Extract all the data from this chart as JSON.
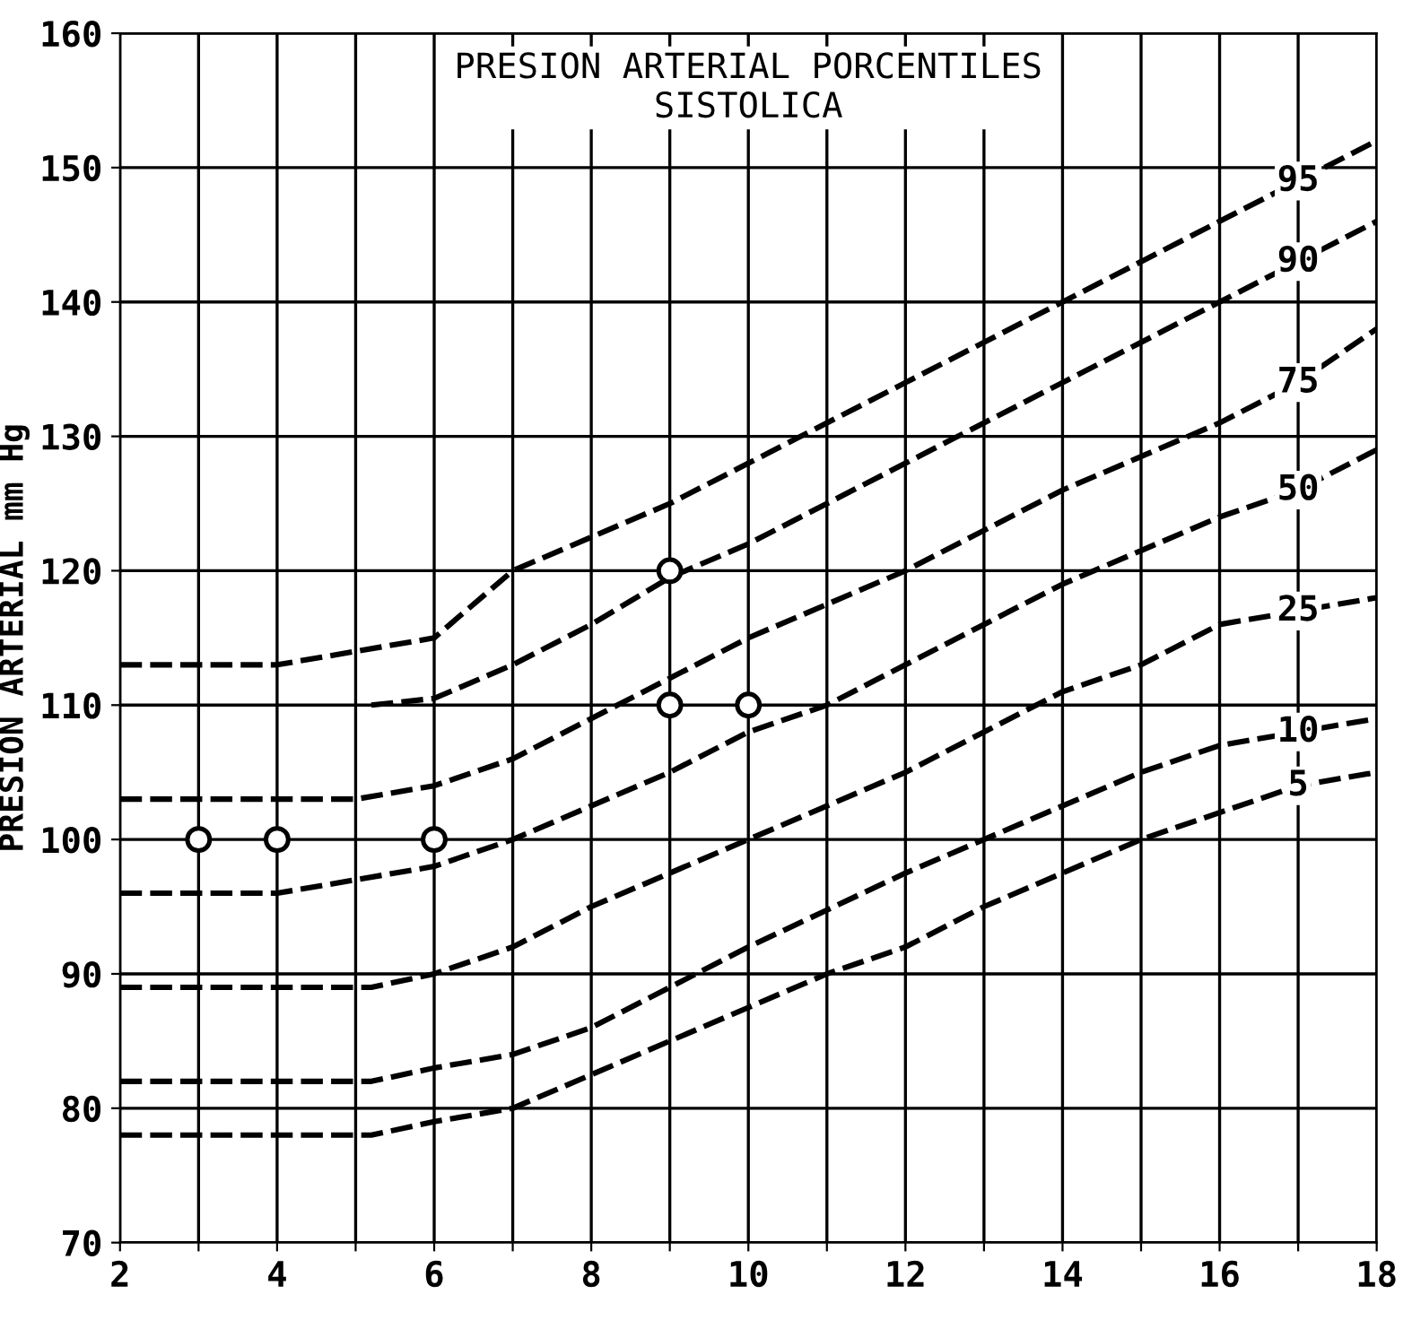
{
  "chart_data": {
    "type": "line",
    "title": "PRESION ARTERIAL PORCENTILES\nSISTOLICA",
    "ylabel": "PRESION ARTERIAL mm Hg",
    "xlim": [
      2,
      18
    ],
    "ylim": [
      70,
      160
    ],
    "xticks": [
      2,
      {
        "value": 3,
        "label": null
      },
      4,
      {
        "value": 5,
        "label": null
      },
      6,
      {
        "value": 7,
        "label": null
      },
      8,
      {
        "value": 9,
        "label": null
      },
      10,
      {
        "value": 11,
        "label": null
      },
      12,
      {
        "value": 13,
        "label": null
      },
      14,
      {
        "value": 15,
        "label": null
      },
      16,
      {
        "value": 17,
        "label": null
      },
      18
    ],
    "yticks": [
      70,
      80,
      90,
      100,
      110,
      120,
      130,
      140,
      150,
      160
    ],
    "grid": true,
    "legend": false,
    "line_style": "dashed",
    "marker": "none",
    "series": [
      {
        "name": "95",
        "color": "#000000",
        "x": [
          2,
          4,
          5,
          6,
          7,
          8,
          9,
          10,
          12,
          14,
          16,
          17,
          18
        ],
        "values": [
          113,
          113,
          114,
          115,
          120,
          122.5,
          125,
          128,
          134,
          140,
          146,
          149,
          152
        ]
      },
      {
        "name": "90",
        "color": "#000000",
        "x": [
          5.2,
          6,
          7,
          8,
          9,
          10,
          12,
          14,
          16,
          17,
          18
        ],
        "values": [
          110,
          110.5,
          113,
          116,
          119.5,
          122,
          128,
          134,
          140,
          143,
          146
        ]
      },
      {
        "name": "75",
        "color": "#000000",
        "x": [
          2,
          5,
          6,
          7,
          8,
          9,
          10,
          12,
          14,
          16,
          17,
          18
        ],
        "values": [
          103,
          103,
          104,
          106,
          109,
          112,
          115,
          120,
          126,
          131,
          134,
          138
        ]
      },
      {
        "name": "50",
        "color": "#000000",
        "x": [
          2,
          4,
          5,
          6,
          7,
          8,
          9,
          10,
          11,
          12,
          14,
          16,
          17,
          18
        ],
        "values": [
          96,
          96,
          97,
          98,
          100,
          102.5,
          105,
          108,
          110,
          113,
          119,
          124,
          126,
          129
        ]
      },
      {
        "name": "25",
        "color": "#000000",
        "x": [
          2,
          5.2,
          6,
          7,
          8,
          9,
          10,
          12,
          13,
          14,
          15,
          16,
          17,
          18
        ],
        "values": [
          89,
          89,
          90,
          92,
          95,
          97.5,
          100,
          105,
          108,
          111,
          113,
          116,
          117,
          118
        ]
      },
      {
        "name": "10",
        "color": "#000000",
        "x": [
          2,
          5.2,
          6,
          7,
          8,
          9,
          10,
          12,
          13,
          14,
          15,
          16,
          17,
          18
        ],
        "values": [
          82,
          82,
          83,
          84,
          86,
          89,
          92,
          97.5,
          100,
          102.5,
          105,
          107,
          108,
          109
        ]
      },
      {
        "name": "5",
        "color": "#000000",
        "x": [
          2,
          5.2,
          6,
          7,
          8,
          9,
          10,
          11,
          12,
          13,
          14,
          15,
          16,
          17,
          18
        ],
        "values": [
          78,
          78,
          79,
          80,
          82.5,
          85,
          87.5,
          90,
          92,
          95,
          97.5,
          100,
          102,
          104,
          105
        ]
      },
      {
        "type": "scatter",
        "color": "#000000",
        "marker": "circle",
        "x": [
          3,
          4,
          6,
          9,
          10,
          9
        ],
        "values": [
          100,
          100,
          100,
          110,
          110,
          120
        ]
      }
    ]
  }
}
